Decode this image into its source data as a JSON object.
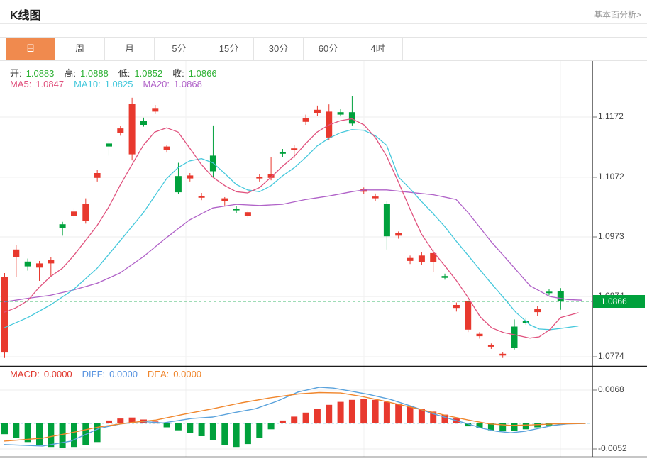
{
  "header": {
    "title": "K线图",
    "link": "基本面分析>"
  },
  "tabs": [
    {
      "label": "日",
      "active": true
    },
    {
      "label": "周",
      "active": false
    },
    {
      "label": "月",
      "active": false
    },
    {
      "label": "5分",
      "active": false
    },
    {
      "label": "15分",
      "active": false
    },
    {
      "label": "30分",
      "active": false
    },
    {
      "label": "60分",
      "active": false
    },
    {
      "label": "4时",
      "active": false
    }
  ],
  "legend": {
    "ohlc": [
      {
        "label": "开:",
        "value": "1.0883"
      },
      {
        "label": "高:",
        "value": "1.0888"
      },
      {
        "label": "低:",
        "value": "1.0852"
      },
      {
        "label": "收:",
        "value": "1.0866"
      }
    ],
    "ohlc_label_color": "#333333",
    "ohlc_value_color": "#2eb135",
    "ma": [
      {
        "label": "MA5:",
        "value": "1.0847",
        "color": "#e0527e"
      },
      {
        "label": "MA10:",
        "value": "1.0825",
        "color": "#45c8dc"
      },
      {
        "label": "MA20:",
        "value": "1.0868",
        "color": "#b062c8"
      }
    ]
  },
  "macd_legend": [
    {
      "label": "MACD:",
      "value": "0.0000",
      "color": "#e0392f"
    },
    {
      "label": "DIFF:",
      "value": "0.0000",
      "color": "#5793e0"
    },
    {
      "label": "DEA:",
      "value": "0.0000",
      "color": "#f0862c"
    }
  ],
  "colors": {
    "up": "#e8392e",
    "down": "#00a13c",
    "active_tab": "#f08a4e",
    "price_line": "#00a13c",
    "diff_line": "#5aa2dc",
    "dea_line": "#f0862c",
    "macd_zero_line": "#9fd4e8",
    "grid": "#ededed",
    "vgrid": "#f1f1f1",
    "axis": "#777777",
    "separator": "#1b1b1b"
  },
  "chart_data": {
    "type": "candlestick",
    "interval_selected": "日",
    "legend_position": "top-left",
    "grid": true,
    "price_axis": {
      "ticks": [
        "1.1172",
        "1.1072",
        "1.0973",
        "1.0874",
        "1.0774"
      ],
      "current": "1.0866"
    },
    "macd_axis": {
      "ticks": [
        "0.0068",
        "-0.0052"
      ]
    },
    "candles": [
      [
        1.0781,
        1.0913,
        1.0772,
        1.0907
      ],
      [
        1.094,
        1.096,
        1.0907,
        1.0952
      ],
      [
        1.0932,
        1.0937,
        1.0917,
        1.0924
      ],
      [
        1.0922,
        1.0933,
        1.09,
        1.0929
      ],
      [
        1.0929,
        1.094,
        1.0908,
        1.0935
      ],
      [
        1.0994,
        1.0998,
        1.0975,
        1.0988
      ],
      [
        1.1008,
        1.1021,
        1.1001,
        1.1015
      ],
      [
        1.0999,
        1.1037,
        1.0995,
        1.1028
      ],
      [
        1.1071,
        1.1084,
        1.1065,
        1.1079
      ],
      [
        1.1128,
        1.1132,
        1.1108,
        1.1123
      ],
      [
        1.1145,
        1.1157,
        1.1141,
        1.1153
      ],
      [
        1.111,
        1.1204,
        1.11,
        1.1194
      ],
      [
        1.1166,
        1.1171,
        1.1156,
        1.1159
      ],
      [
        1.1181,
        1.1192,
        1.1177,
        1.1187
      ],
      [
        1.1117,
        1.1126,
        1.1113,
        1.1123
      ],
      [
        1.1074,
        1.1096,
        1.1044,
        1.1047
      ],
      [
        1.107,
        1.1079,
        1.1065,
        1.1075
      ],
      [
        1.1038,
        1.1046,
        1.1034,
        1.1041
      ],
      [
        1.1108,
        1.1158,
        1.1072,
        1.1082
      ],
      [
        1.1032,
        1.1039,
        1.1025,
        1.1037
      ],
      [
        1.102,
        1.1024,
        1.1012,
        1.1017
      ],
      [
        1.1008,
        1.1017,
        1.1004,
        1.1014
      ],
      [
        1.107,
        1.1077,
        1.1065,
        1.1073
      ],
      [
        1.1071,
        1.1105,
        1.1067,
        1.1077
      ],
      [
        1.1114,
        1.1119,
        1.1106,
        1.1111
      ],
      [
        1.1118,
        1.1125,
        1.1104,
        1.112
      ],
      [
        1.1164,
        1.1176,
        1.1159,
        1.117
      ],
      [
        1.1179,
        1.1191,
        1.1174,
        1.1184
      ],
      [
        1.1138,
        1.1193,
        1.1134,
        1.1181
      ],
      [
        1.118,
        1.1185,
        1.1173,
        1.1176
      ],
      [
        1.118,
        1.1207,
        1.1158,
        1.1161
      ],
      [
        1.1048,
        1.1055,
        1.1044,
        1.1052
      ],
      [
        1.1037,
        1.1045,
        1.1032,
        1.104
      ],
      [
        1.1028,
        1.1033,
        1.0952,
        1.0974
      ],
      [
        1.0975,
        1.0982,
        1.097,
        1.0979
      ],
      [
        1.0933,
        1.0942,
        1.0928,
        1.0938
      ],
      [
        1.0931,
        1.0948,
        1.0926,
        1.0942
      ],
      [
        1.0931,
        1.0952,
        1.0915,
        1.0946
      ],
      [
        1.0908,
        1.0912,
        1.0902,
        1.0905
      ],
      [
        1.0855,
        1.0864,
        1.0849,
        1.086
      ],
      [
        1.0819,
        1.0871,
        1.0815,
        1.0866
      ],
      [
        1.0808,
        1.0815,
        1.0804,
        1.0812
      ],
      [
        1.0791,
        1.0796,
        1.0787,
        1.0793
      ],
      [
        1.0776,
        1.0782,
        1.0772,
        1.0779
      ],
      [
        1.0824,
        1.0836,
        1.0786,
        1.0789
      ],
      [
        1.0834,
        1.0839,
        1.0827,
        1.083
      ],
      [
        1.0848,
        1.0858,
        1.0842,
        1.0853
      ],
      [
        1.0882,
        1.0886,
        1.0876,
        1.088
      ],
      [
        1.0883,
        1.0888,
        1.0852,
        1.0866
      ]
    ],
    "ma5": [
      [
        6,
        1.0848
      ],
      [
        22,
        1.0855
      ],
      [
        39,
        1.0867
      ],
      [
        55,
        1.0889
      ],
      [
        71,
        1.0907
      ],
      [
        88,
        1.0921
      ],
      [
        104,
        1.0942
      ],
      [
        120,
        1.0966
      ],
      [
        137,
        1.0992
      ],
      [
        153,
        1.1022
      ],
      [
        169,
        1.1058
      ],
      [
        186,
        1.1093
      ],
      [
        202,
        1.1125
      ],
      [
        218,
        1.1147
      ],
      [
        235,
        1.1154
      ],
      [
        251,
        1.1147
      ],
      [
        267,
        1.1121
      ],
      [
        284,
        1.1093
      ],
      [
        300,
        1.1072
      ],
      [
        317,
        1.1058
      ],
      [
        333,
        1.1048
      ],
      [
        349,
        1.1046
      ],
      [
        366,
        1.1055
      ],
      [
        382,
        1.1072
      ],
      [
        398,
        1.109
      ],
      [
        415,
        1.1107
      ],
      [
        431,
        1.1128
      ],
      [
        447,
        1.1147
      ],
      [
        464,
        1.1159
      ],
      [
        480,
        1.1166
      ],
      [
        496,
        1.1169
      ],
      [
        513,
        1.1159
      ],
      [
        529,
        1.1138
      ],
      [
        545,
        1.1107
      ],
      [
        562,
        1.1063
      ],
      [
        578,
        1.1019
      ],
      [
        594,
        1.0978
      ],
      [
        611,
        1.0948
      ],
      [
        627,
        1.0925
      ],
      [
        643,
        1.0901
      ],
      [
        660,
        1.0872
      ],
      [
        677,
        1.084
      ],
      [
        693,
        1.0822
      ],
      [
        710,
        1.0814
      ],
      [
        727,
        1.081
      ],
      [
        747,
        1.0805
      ],
      [
        760,
        1.0807
      ],
      [
        775,
        1.0819
      ],
      [
        790,
        1.0839
      ],
      [
        815,
        1.0847
      ]
    ],
    "ma10": [
      [
        6,
        1.0822
      ],
      [
        39,
        1.0839
      ],
      [
        71,
        1.086
      ],
      [
        104,
        1.0886
      ],
      [
        137,
        1.0921
      ],
      [
        169,
        1.0966
      ],
      [
        202,
        1.1013
      ],
      [
        235,
        1.107
      ],
      [
        251,
        1.1088
      ],
      [
        267,
        1.1099
      ],
      [
        284,
        1.1103
      ],
      [
        300,
        1.1096
      ],
      [
        317,
        1.1078
      ],
      [
        333,
        1.106
      ],
      [
        349,
        1.1051
      ],
      [
        366,
        1.1048
      ],
      [
        382,
        1.1058
      ],
      [
        398,
        1.1074
      ],
      [
        415,
        1.1088
      ],
      [
        431,
        1.1105
      ],
      [
        447,
        1.1124
      ],
      [
        464,
        1.1137
      ],
      [
        480,
        1.1146
      ],
      [
        496,
        1.1151
      ],
      [
        513,
        1.115
      ],
      [
        529,
        1.1141
      ],
      [
        545,
        1.1125
      ],
      [
        562,
        1.1072
      ],
      [
        578,
        1.1053
      ],
      [
        594,
        1.1032
      ],
      [
        611,
        1.1011
      ],
      [
        627,
        1.099
      ],
      [
        643,
        1.0966
      ],
      [
        660,
        1.0942
      ],
      [
        676,
        1.0919
      ],
      [
        693,
        1.0895
      ],
      [
        710,
        1.0872
      ],
      [
        727,
        1.0848
      ],
      [
        747,
        1.0827
      ],
      [
        760,
        1.082
      ],
      [
        775,
        1.0819
      ],
      [
        790,
        1.0821
      ],
      [
        815,
        1.0825
      ]
    ],
    "ma20": [
      [
        6,
        1.0865
      ],
      [
        39,
        1.0871
      ],
      [
        71,
        1.0876
      ],
      [
        104,
        1.0885
      ],
      [
        137,
        1.0896
      ],
      [
        169,
        1.0913
      ],
      [
        202,
        1.094
      ],
      [
        235,
        1.0972
      ],
      [
        267,
        1.1001
      ],
      [
        300,
        1.1021
      ],
      [
        333,
        1.1027
      ],
      [
        366,
        1.1025
      ],
      [
        398,
        1.1027
      ],
      [
        431,
        1.1035
      ],
      [
        464,
        1.1041
      ],
      [
        496,
        1.1048
      ],
      [
        513,
        1.1051
      ],
      [
        545,
        1.1051
      ],
      [
        578,
        1.1047
      ],
      [
        611,
        1.1043
      ],
      [
        643,
        1.1035
      ],
      [
        660,
        1.1013
      ],
      [
        693,
        1.0964
      ],
      [
        727,
        1.0919
      ],
      [
        747,
        1.0892
      ],
      [
        775,
        1.0874
      ],
      [
        800,
        1.0869
      ],
      [
        820,
        1.0868
      ]
    ],
    "macd_hist": [
      -0.0022,
      -0.003,
      -0.0038,
      -0.0044,
      -0.0048,
      -0.005,
      -0.0048,
      -0.0044,
      -0.0038,
      0.0006,
      0.001,
      0.0012,
      0.0008,
      0.0004,
      -0.0008,
      -0.0014,
      -0.002,
      -0.0026,
      -0.0034,
      -0.0044,
      -0.0048,
      -0.0042,
      -0.003,
      -0.0012,
      0.0006,
      0.0014,
      0.0022,
      0.003,
      0.0038,
      0.0044,
      0.0048,
      0.005,
      0.0048,
      0.0044,
      0.004,
      0.0036,
      0.003,
      0.0024,
      0.0018,
      0.001,
      -0.0006,
      -0.001,
      -0.0014,
      -0.0016,
      -0.0015,
      -0.0012,
      -0.0008,
      -0.0004,
      -0.0002
    ],
    "diff": [
      [
        6,
        -0.0043
      ],
      [
        60,
        -0.0046
      ],
      [
        100,
        -0.0036
      ],
      [
        140,
        -0.001
      ],
      [
        170,
        -0.0001
      ],
      [
        200,
        0.0004
      ],
      [
        230,
        0.0001
      ],
      [
        270,
        0.001
      ],
      [
        300,
        0.0013
      ],
      [
        330,
        0.0022
      ],
      [
        360,
        0.003
      ],
      [
        390,
        0.0045
      ],
      [
        420,
        0.0064
      ],
      [
        450,
        0.0074
      ],
      [
        470,
        0.0072
      ],
      [
        490,
        0.0067
      ],
      [
        520,
        0.0059
      ],
      [
        550,
        0.0049
      ],
      [
        580,
        0.0035
      ],
      [
        610,
        0.002
      ],
      [
        640,
        0.0007
      ],
      [
        660,
        -0.0001
      ],
      [
        680,
        -0.001
      ],
      [
        700,
        -0.0016
      ],
      [
        720,
        -0.0019
      ],
      [
        740,
        -0.0016
      ],
      [
        760,
        -0.001
      ],
      [
        780,
        -0.0004
      ],
      [
        800,
        -0.0001
      ],
      [
        825,
        0.0
      ]
    ],
    "dea": [
      [
        6,
        -0.0036
      ],
      [
        60,
        -0.003
      ],
      [
        100,
        -0.0019
      ],
      [
        140,
        -0.0007
      ],
      [
        180,
        0.0001
      ],
      [
        220,
        0.0007
      ],
      [
        260,
        0.0019
      ],
      [
        300,
        0.003
      ],
      [
        340,
        0.0042
      ],
      [
        380,
        0.0052
      ],
      [
        420,
        0.006
      ],
      [
        450,
        0.0063
      ],
      [
        480,
        0.0062
      ],
      [
        510,
        0.0055
      ],
      [
        540,
        0.0046
      ],
      [
        570,
        0.0036
      ],
      [
        600,
        0.0026
      ],
      [
        630,
        0.0016
      ],
      [
        660,
        0.0007
      ],
      [
        690,
        -0.0001
      ],
      [
        720,
        -0.0004
      ],
      [
        750,
        -0.0003
      ],
      [
        780,
        -0.0001
      ],
      [
        825,
        0.0
      ]
    ]
  }
}
